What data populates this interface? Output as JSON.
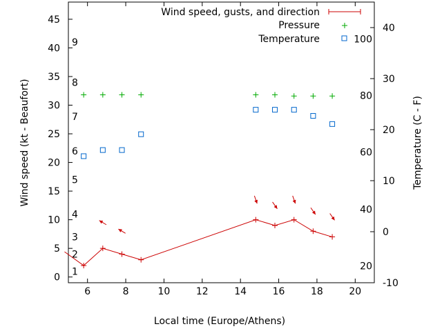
{
  "chart_data": {
    "type": "line",
    "title": "",
    "xlabel": "Local time (Europe/Athens)",
    "ylabel_left": "Wind speed (kt - Beaufort)",
    "ylabel_right": "Temperature (C - F)",
    "xlim": [
      5,
      21
    ],
    "ylim_left": [
      -1,
      48
    ],
    "ylim_right": [
      -10,
      45
    ],
    "x_ticks": [
      6,
      8,
      10,
      12,
      14,
      16,
      18,
      20
    ],
    "y_ticks_left": [
      0,
      5,
      10,
      15,
      20,
      25,
      30,
      35,
      40,
      45
    ],
    "y_ticks_right": [
      -10,
      0,
      10,
      20,
      30,
      40
    ],
    "beaufort_labels": [
      {
        "label": "1",
        "y": 1
      },
      {
        "label": "2",
        "y": 4
      },
      {
        "label": "3",
        "y": 7
      },
      {
        "label": "4",
        "y": 11
      },
      {
        "label": "5",
        "y": 17
      },
      {
        "label": "6",
        "y": 22
      },
      {
        "label": "7",
        "y": 28
      },
      {
        "label": "8",
        "y": 34
      },
      {
        "label": "9",
        "y": 41
      }
    ],
    "fahrenheit_labels": [
      {
        "label": "20",
        "t": -6.7
      },
      {
        "label": "40",
        "t": 4.4
      },
      {
        "label": "60",
        "t": 15.6
      },
      {
        "label": "80",
        "t": 26.7
      },
      {
        "label": "100",
        "t": 37.8
      }
    ],
    "legend": [
      {
        "name": "Wind speed, gusts, and direction",
        "color": "#cc0000",
        "marker": "line-plus"
      },
      {
        "name": "Pressure",
        "color": "#00aa00",
        "marker": "plus"
      },
      {
        "name": "Temperature",
        "color": "#0066cc",
        "marker": "square"
      }
    ],
    "legend_position": "top-right",
    "series": [
      {
        "name": "Wind speed, gusts, and direction",
        "color": "#cc0000",
        "axis": "left",
        "x": [
          4.8,
          5.8,
          6.8,
          7.8,
          8.8,
          14.8,
          15.8,
          16.8,
          17.8,
          18.8
        ],
        "y": [
          4.4,
          2.0,
          5.0,
          4.0,
          3.0,
          10.0,
          9.0,
          10.0,
          8.0,
          7.0
        ]
      },
      {
        "name": "Pressure",
        "color": "#00aa00",
        "axis": "left",
        "x": [
          5.8,
          6.8,
          7.8,
          8.8,
          14.8,
          15.8,
          16.8,
          17.8,
          18.8
        ],
        "y": [
          31.8,
          31.8,
          31.8,
          31.8,
          31.8,
          31.8,
          31.6,
          31.6,
          31.6
        ]
      },
      {
        "name": "Temperature",
        "color": "#0066cc",
        "axis": "right",
        "x": [
          5.8,
          6.8,
          7.8,
          8.8,
          14.8,
          15.8,
          16.8,
          17.8,
          18.8
        ],
        "y": [
          14.8,
          16.0,
          16.0,
          19.1,
          23.9,
          23.9,
          23.9,
          22.7,
          21.1
        ]
      }
    ],
    "wind_directions": [
      {
        "x": 6.8,
        "y": 9.5,
        "dir": "from-southeast"
      },
      {
        "x": 7.8,
        "y": 8.0,
        "dir": "from-southeast"
      },
      {
        "x": 14.8,
        "y": 13.5,
        "dir": "from-north"
      },
      {
        "x": 15.8,
        "y": 12.5,
        "dir": "from-northwest"
      },
      {
        "x": 16.8,
        "y": 13.5,
        "dir": "from-north"
      },
      {
        "x": 17.8,
        "y": 11.5,
        "dir": "from-northwest"
      },
      {
        "x": 18.8,
        "y": 10.5,
        "dir": "from-northwest"
      }
    ],
    "colors": {
      "wind": "#cc0000",
      "pressure": "#00aa00",
      "temperature": "#0066cc",
      "axis": "#000000"
    }
  }
}
